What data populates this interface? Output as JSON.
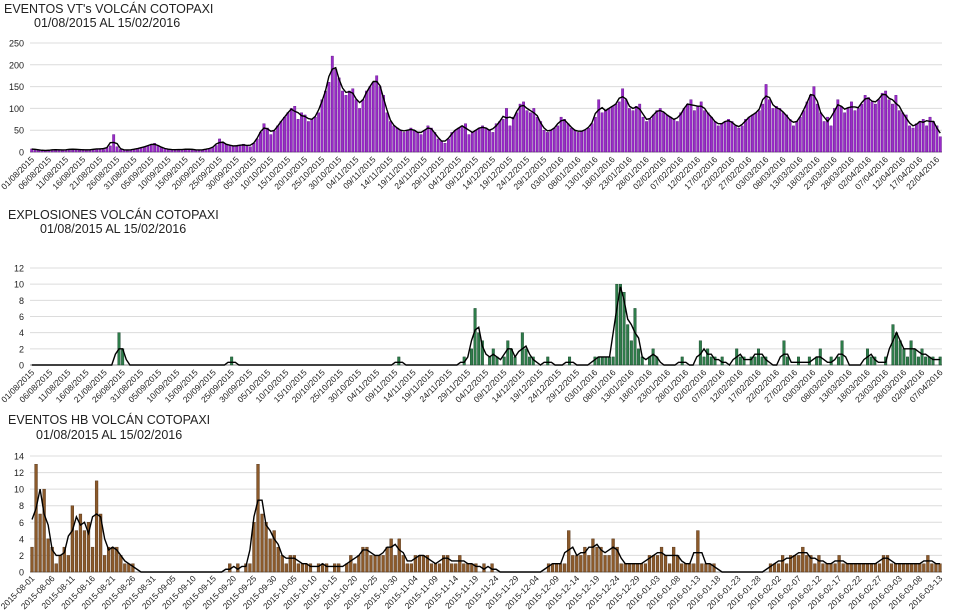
{
  "chart_data": [
    {
      "type": "bar",
      "title": "EVENTOS VT's  VOLCÁN COTOPAXI",
      "subtitle": "01/08/2015 AL 15/02/2016",
      "start_date": "2015-08-01",
      "label_format": "dd/mm/yyyy",
      "tick_every_days": 5,
      "ylim": [
        0,
        250
      ],
      "yticks": [
        0,
        50,
        100,
        150,
        200,
        250
      ],
      "bar_color": "#9a2bc9",
      "bar_stroke": "#5a0d80",
      "line_color": "#000000",
      "grid": true,
      "values": [
        7,
        6,
        5,
        4,
        3,
        4,
        5,
        6,
        5,
        4,
        5,
        6,
        7,
        6,
        5,
        6,
        4,
        5,
        6,
        7,
        8,
        6,
        10,
        14,
        40,
        12,
        6,
        5,
        4,
        5,
        6,
        8,
        10,
        12,
        14,
        18,
        20,
        15,
        10,
        8,
        6,
        5,
        6,
        5,
        6,
        6,
        7,
        6,
        5,
        4,
        5,
        6,
        8,
        10,
        15,
        30,
        20,
        18,
        15,
        14,
        13,
        16,
        18,
        15,
        12,
        20,
        30,
        45,
        65,
        55,
        40,
        48,
        60,
        70,
        80,
        90,
        100,
        105,
        75,
        90,
        85,
        70,
        75,
        80,
        90,
        120,
        140,
        160,
        220,
        190,
        170,
        140,
        130,
        140,
        145,
        120,
        100,
        120,
        140,
        150,
        160,
        175,
        150,
        130,
        90,
        70,
        60,
        55,
        50,
        45,
        50,
        55,
        50,
        45,
        40,
        50,
        60,
        55,
        45,
        30,
        25,
        20,
        30,
        45,
        50,
        55,
        60,
        65,
        40,
        45,
        50,
        55,
        60,
        55,
        50,
        45,
        65,
        70,
        75,
        100,
        60,
        80,
        90,
        110,
        115,
        95,
        90,
        100,
        80,
        70,
        50,
        45,
        50,
        55,
        60,
        80,
        75,
        65,
        55,
        50,
        45,
        48,
        50,
        55,
        65,
        80,
        120,
        90,
        95,
        100,
        105,
        110,
        115,
        145,
        120,
        100,
        95,
        105,
        110,
        80,
        70,
        75,
        85,
        95,
        100,
        90,
        85,
        80,
        75,
        70,
        90,
        100,
        110,
        120,
        95,
        105,
        115,
        95,
        90,
        80,
        70,
        60,
        65,
        70,
        75,
        70,
        60,
        55,
        60,
        75,
        80,
        85,
        90,
        95,
        110,
        155,
        120,
        100,
        105,
        100,
        90,
        85,
        75,
        60,
        70,
        80,
        95,
        115,
        130,
        150,
        110,
        90,
        70,
        80,
        60,
        100,
        120,
        105,
        90,
        100,
        115,
        95,
        100,
        110,
        130,
        125,
        115,
        110,
        120,
        135,
        140,
        120,
        110,
        130,
        95,
        90,
        85,
        60,
        55,
        65,
        70,
        75,
        60,
        80,
        70,
        60,
        35
      ]
    },
    {
      "type": "bar",
      "title": "EXPLOSIONES  VOLCÁN COTOPAXI",
      "subtitle": "01/08/2015 AL 15/02/2016",
      "start_date": "2015-08-01",
      "label_format": "dd/mm/yyyy",
      "tick_every_days": 5,
      "ylim": [
        0,
        12
      ],
      "yticks": [
        0,
        2,
        4,
        6,
        8,
        10,
        12
      ],
      "bar_color": "#2e7d4a",
      "bar_stroke": "#0f3b22",
      "line_color": "#000000",
      "grid": true,
      "values": [
        0,
        0,
        0,
        0,
        0,
        0,
        0,
        0,
        0,
        0,
        0,
        0,
        0,
        0,
        0,
        0,
        0,
        0,
        0,
        0,
        0,
        0,
        0,
        0,
        4,
        2,
        0,
        0,
        0,
        0,
        0,
        0,
        0,
        0,
        0,
        0,
        0,
        0,
        0,
        0,
        0,
        0,
        0,
        0,
        0,
        0,
        0,
        0,
        0,
        0,
        0,
        0,
        0,
        0,
        0,
        1,
        0,
        0,
        0,
        0,
        0,
        0,
        0,
        0,
        0,
        0,
        0,
        0,
        0,
        0,
        0,
        0,
        0,
        0,
        0,
        0,
        0,
        0,
        0,
        0,
        0,
        0,
        0,
        0,
        0,
        0,
        0,
        0,
        0,
        0,
        0,
        0,
        0,
        0,
        0,
        0,
        0,
        0,
        0,
        0,
        0,
        1,
        0,
        0,
        0,
        0,
        0,
        0,
        0,
        0,
        0,
        0,
        0,
        0,
        0,
        0,
        0,
        0,
        0,
        1,
        0,
        2,
        7,
        4,
        3,
        0,
        1,
        2,
        1,
        0,
        1,
        3,
        2,
        1,
        0,
        4,
        2,
        1,
        1,
        0,
        0,
        0,
        1,
        0,
        0,
        0,
        0,
        0,
        1,
        0,
        0,
        0,
        0,
        0,
        0,
        1,
        1,
        1,
        1,
        1,
        1,
        10,
        10,
        9,
        5,
        3,
        7,
        2,
        1,
        0,
        1,
        2,
        1,
        0,
        0,
        0,
        0,
        0,
        0,
        1,
        0,
        0,
        0,
        0,
        3,
        1,
        2,
        1,
        1,
        0,
        1,
        0,
        0,
        0,
        2,
        1,
        1,
        0,
        1,
        1,
        2,
        1,
        1,
        0,
        0,
        0,
        0,
        3,
        1,
        0,
        0,
        1,
        0,
        0,
        1,
        0,
        1,
        2,
        0,
        0,
        1,
        0,
        1,
        3,
        0,
        0,
        0,
        0,
        0,
        0,
        2,
        1,
        1,
        0,
        0,
        1,
        0,
        5,
        4,
        3,
        2,
        1,
        3,
        2,
        1,
        2,
        1,
        1,
        1,
        0,
        1
      ]
    },
    {
      "type": "bar",
      "title": "EVENTOS HB  VOLCÁN COTOPAXI",
      "subtitle": "01/08/2015 AL 15/02/2016",
      "start_date": "2015-08-01",
      "label_format": "yyyy-mm-dd",
      "tick_every_days": 5,
      "ylim": [
        0,
        14
      ],
      "yticks": [
        0,
        2,
        4,
        6,
        8,
        10,
        12,
        14
      ],
      "bar_color": "#8b5a2b",
      "bar_stroke": "#4a2a10",
      "line_color": "#000000",
      "grid": true,
      "values": [
        3,
        13,
        7,
        10,
        4,
        3,
        1,
        2,
        3,
        2,
        8,
        5,
        7,
        5,
        6,
        3,
        11,
        7,
        2,
        3,
        3,
        3,
        2,
        1,
        1,
        1,
        0,
        0,
        0,
        0,
        0,
        0,
        0,
        0,
        0,
        0,
        0,
        0,
        0,
        0,
        0,
        0,
        0,
        0,
        0,
        0,
        0,
        0,
        0,
        1,
        0,
        1,
        0,
        1,
        1,
        6,
        13,
        7,
        6,
        4,
        5,
        3,
        2,
        1,
        2,
        2,
        1,
        1,
        1,
        1,
        0,
        1,
        1,
        1,
        0,
        1,
        1,
        0,
        1,
        2,
        1,
        2,
        3,
        3,
        2,
        2,
        2,
        2,
        3,
        4,
        2,
        4,
        2,
        1,
        1,
        2,
        2,
        2,
        2,
        1,
        1,
        1,
        2,
        2,
        1,
        1,
        2,
        1,
        1,
        1,
        1,
        0,
        1,
        0,
        1,
        0,
        0,
        0,
        0,
        0,
        0,
        0,
        0,
        0,
        0,
        0,
        0,
        0,
        1,
        1,
        1,
        1,
        1,
        5,
        2,
        2,
        2,
        3,
        2,
        4,
        3,
        3,
        2,
        2,
        4,
        3,
        1,
        1,
        1,
        1,
        1,
        1,
        1,
        2,
        2,
        2,
        3,
        2,
        1,
        3,
        2,
        1,
        1,
        1,
        1,
        5,
        1,
        1,
        1,
        1,
        0,
        0,
        0,
        0,
        0,
        0,
        0,
        0,
        0,
        0,
        0,
        0,
        0,
        1,
        1,
        1,
        2,
        1,
        2,
        2,
        2,
        3,
        2,
        2,
        1,
        2,
        1,
        1,
        1,
        1,
        2,
        1,
        1,
        1,
        1,
        1,
        1,
        1,
        1,
        1,
        1,
        2,
        2,
        1,
        1,
        1,
        1,
        1,
        1,
        1,
        1,
        1,
        2,
        1,
        1,
        1
      ]
    }
  ]
}
